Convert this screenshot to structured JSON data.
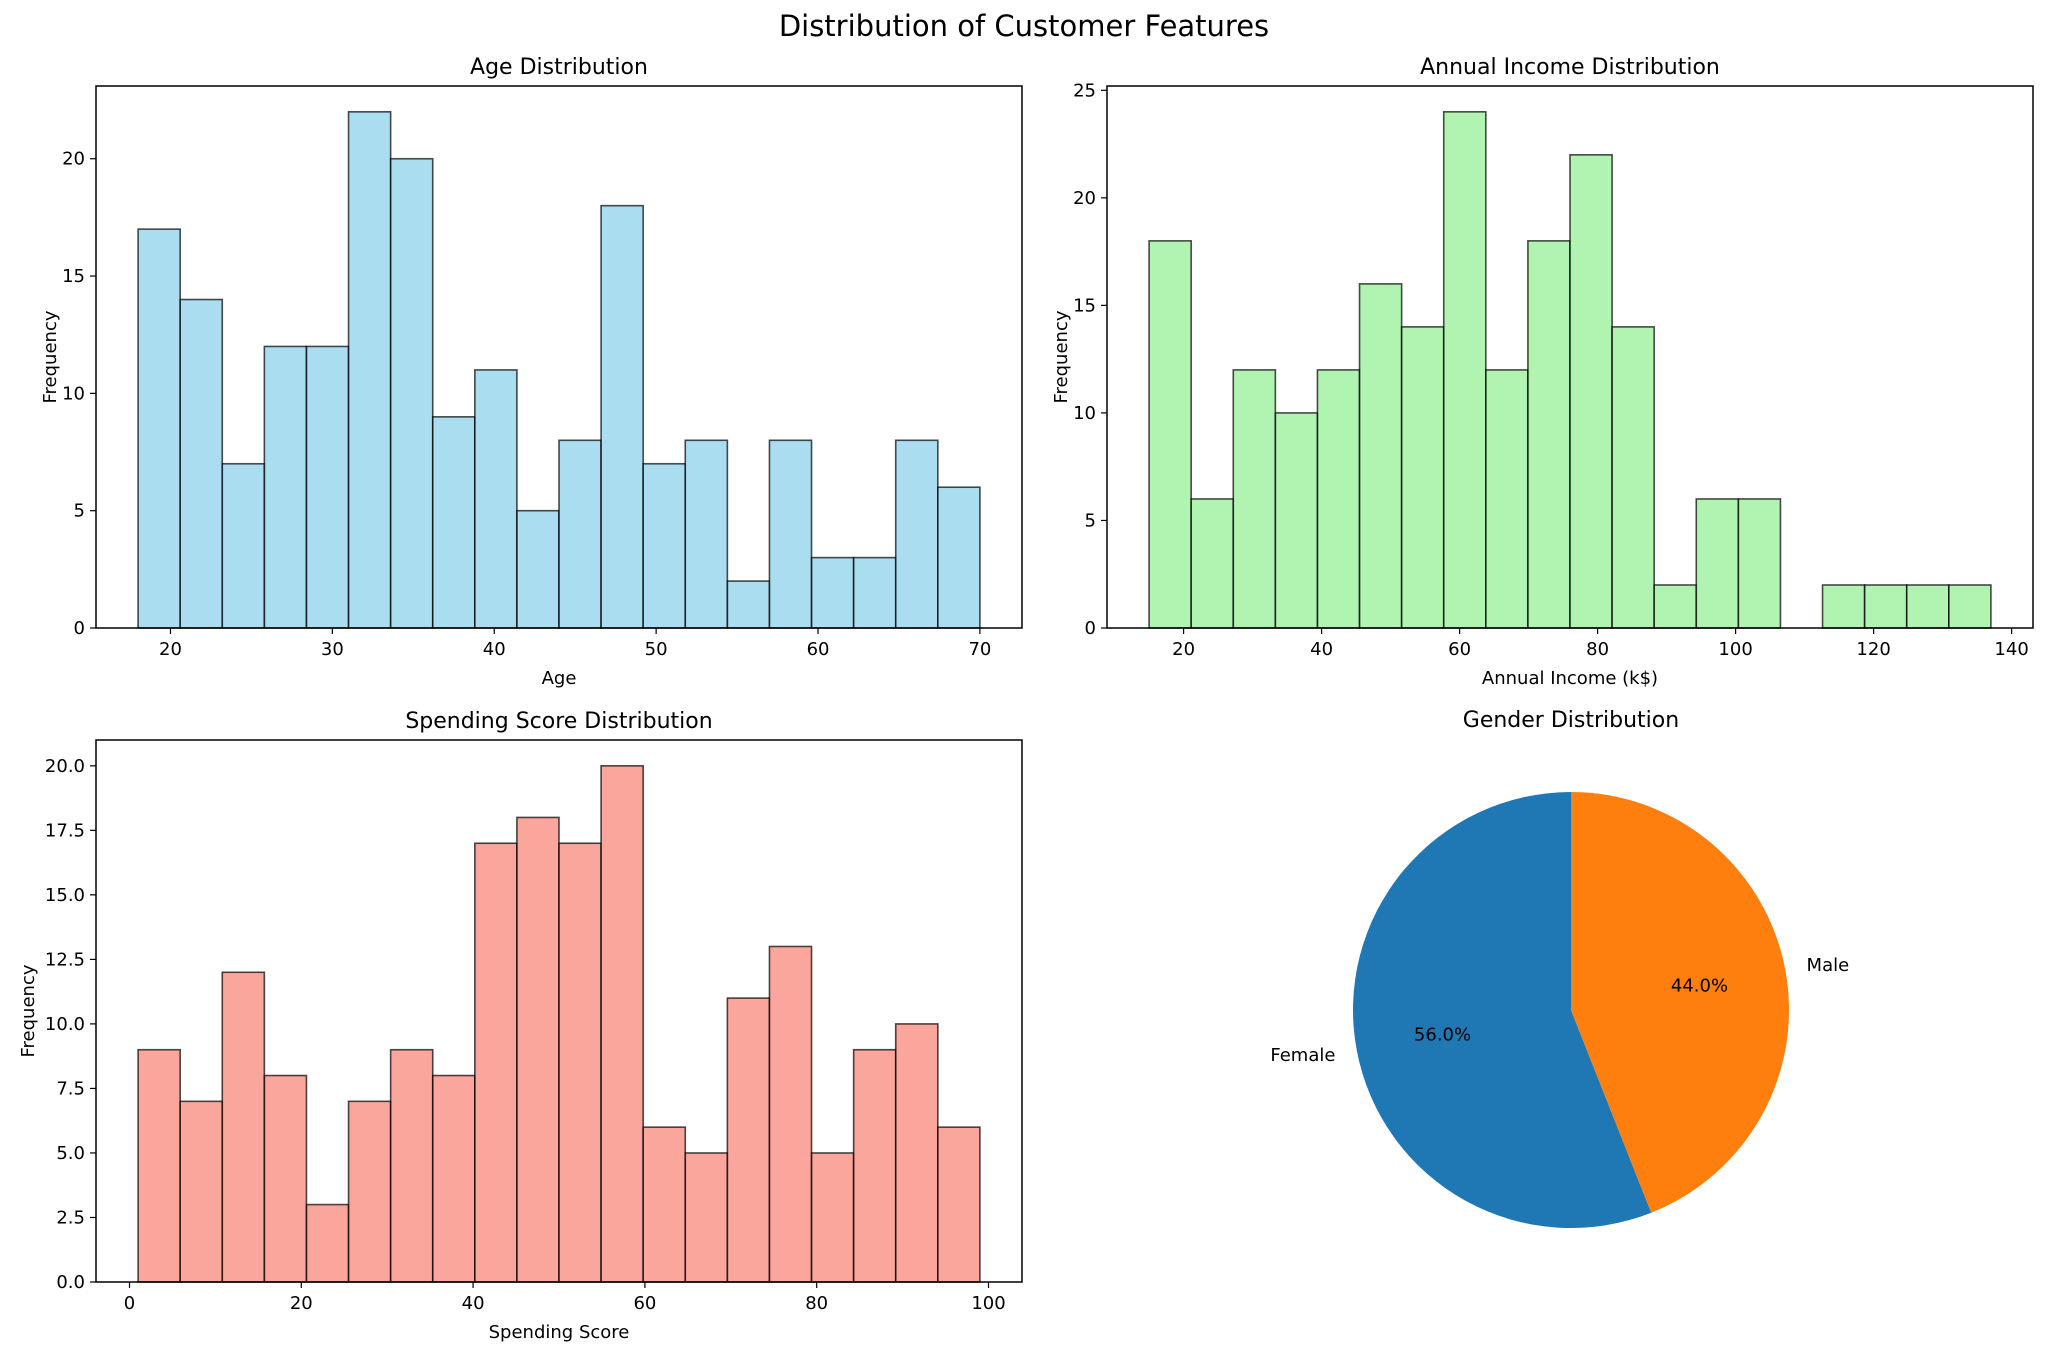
{
  "figure": {
    "suptitle": "Distribution of Customer Features"
  },
  "chart_data": [
    {
      "type": "bar",
      "subtype": "histogram",
      "title": "Age Distribution",
      "xlabel": "Age",
      "ylabel": "Frequency",
      "bin_edges": [
        18,
        20.6,
        23.2,
        25.8,
        28.4,
        31,
        33.6,
        36.2,
        38.8,
        41.4,
        44,
        46.6,
        49.2,
        51.8,
        54.4,
        57,
        59.6,
        62.2,
        64.8,
        67.4,
        70
      ],
      "values": [
        17,
        14,
        7,
        12,
        12,
        22,
        20,
        9,
        11,
        5,
        8,
        18,
        7,
        8,
        2,
        8,
        3,
        3,
        8,
        6
      ],
      "xlim": [
        15.4,
        72.6
      ],
      "ylim": [
        0,
        23.1
      ],
      "xticks": [
        20,
        30,
        40,
        50,
        60,
        70
      ],
      "yticks": [
        0,
        5,
        10,
        15,
        20
      ],
      "ytick_labels": [
        "0",
        "5",
        "10",
        "15",
        "20"
      ],
      "color": "#87CEEB",
      "grid": false
    },
    {
      "type": "bar",
      "subtype": "histogram",
      "title": "Annual Income Distribution",
      "xlabel": "Annual Income (k$)",
      "ylabel": "Frequency",
      "bin_edges": [
        15,
        21.1,
        27.2,
        33.3,
        39.4,
        45.5,
        51.6,
        57.7,
        63.8,
        69.9,
        76,
        82.1,
        88.2,
        94.3,
        100.4,
        106.5,
        112.6,
        118.7,
        124.8,
        130.9,
        137
      ],
      "values": [
        18,
        6,
        12,
        10,
        12,
        16,
        14,
        24,
        12,
        18,
        22,
        14,
        2,
        6,
        6,
        0,
        2,
        2,
        2,
        2
      ],
      "xlim": [
        8.9,
        143.1
      ],
      "ylim": [
        0,
        25.2
      ],
      "xticks": [
        20,
        40,
        60,
        80,
        100,
        120,
        140
      ],
      "yticks": [
        0,
        5,
        10,
        15,
        20,
        25
      ],
      "ytick_labels": [
        "0",
        "5",
        "10",
        "15",
        "20",
        "25"
      ],
      "color": "#90EE90",
      "grid": false
    },
    {
      "type": "bar",
      "subtype": "histogram",
      "title": "Spending Score Distribution",
      "xlabel": "Spending Score",
      "ylabel": "Frequency",
      "bin_edges": [
        1,
        5.9,
        10.8,
        15.7,
        20.6,
        25.5,
        30.4,
        35.3,
        40.2,
        45.1,
        50,
        54.9,
        59.8,
        64.7,
        69.6,
        74.5,
        79.4,
        84.3,
        89.2,
        94.1,
        99
      ],
      "values": [
        9,
        7,
        12,
        8,
        3,
        7,
        9,
        8,
        17,
        18,
        17,
        20,
        6,
        5,
        11,
        13,
        5,
        9,
        10,
        6
      ],
      "xlim": [
        -3.9,
        103.9
      ],
      "ylim": [
        0,
        21
      ],
      "xticks": [
        0,
        20,
        40,
        60,
        80,
        100
      ],
      "yticks": [
        0,
        2.5,
        5,
        7.5,
        10,
        12.5,
        15,
        17.5,
        20
      ],
      "ytick_labels": [
        "0.0",
        "2.5",
        "5.0",
        "7.5",
        "10.0",
        "12.5",
        "15.0",
        "17.5",
        "20.0"
      ],
      "color": "#FA8072",
      "grid": false
    },
    {
      "type": "pie",
      "title": "Gender Distribution",
      "labels": [
        "Female",
        "Male"
      ],
      "values": [
        56.0,
        44.0
      ],
      "value_labels": [
        "56.0%",
        "44.0%"
      ],
      "colors": [
        "#1f77b4",
        "#ff7f0e"
      ],
      "startangle": 90
    }
  ]
}
